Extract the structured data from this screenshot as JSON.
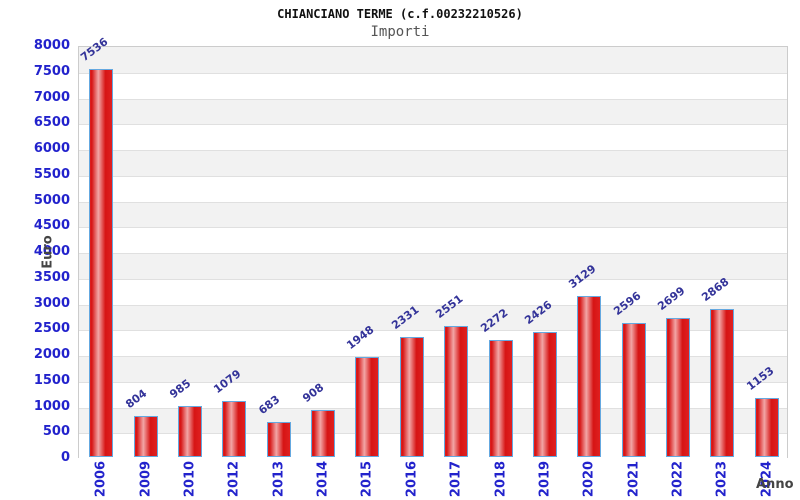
{
  "chart_data": {
    "type": "bar",
    "title": "CHIANCIANO TERME (c.f.00232210526)",
    "subtitle": "Importi",
    "xlabel": "Anno",
    "ylabel": "Euro",
    "categories": [
      "2006",
      "2009",
      "2010",
      "2012",
      "2013",
      "2014",
      "2015",
      "2016",
      "2017",
      "2018",
      "2019",
      "2020",
      "2021",
      "2022",
      "2023",
      "2024"
    ],
    "values": [
      7536,
      804,
      985,
      1079,
      683,
      908,
      1948,
      2331,
      2551,
      2272,
      2426,
      3129,
      2596,
      2699,
      2868,
      1153
    ],
    "ylim": [
      0,
      8000
    ],
    "ytick_step": 500,
    "grid": "horizontal",
    "legend": "none",
    "colors": {
      "tick_label_blue": "#2222cc",
      "value_label_navy": "#333399",
      "axis_label_gray": "#444444",
      "title_black": "#111111",
      "subtitle_gray": "#555555",
      "band_gray": "#f2f2f2",
      "band_white": "#ffffff",
      "gridline": "#e0e0e0",
      "plot_border": "#cccccc",
      "bar_border": "#64a8e0",
      "bar_red_dark": "#d61414",
      "bar_red_edge": "#e02020",
      "bar_red_highlight": "#f2a6a6"
    }
  }
}
